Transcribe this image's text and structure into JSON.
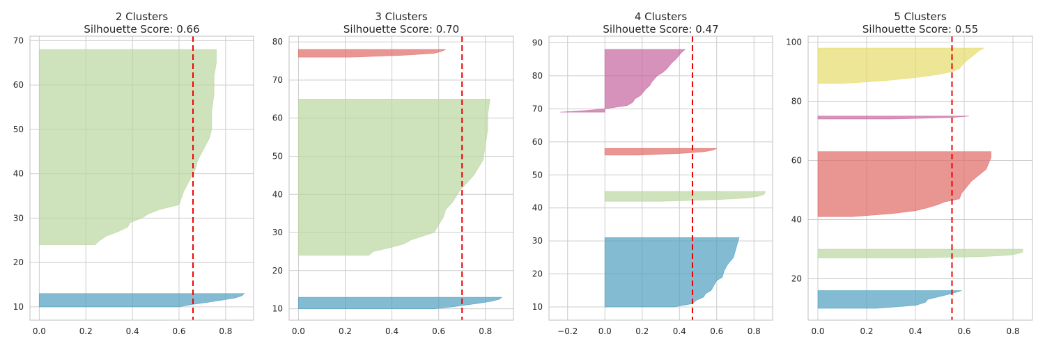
{
  "figure": {
    "background": "#ffffff"
  },
  "chart_data": [
    {
      "type": "area",
      "chart_kind": "silhouette",
      "title": "2 Clusters",
      "subtitle": "Silhouette Score: 0.66",
      "avg_score": 0.66,
      "avg_line_color": "#ee0000",
      "xlim": [
        -0.04,
        0.92
      ],
      "ylim": [
        7,
        71
      ],
      "xticks": [
        0.0,
        0.2,
        0.4,
        0.6,
        0.8
      ],
      "xtick_labels": [
        "0.0",
        "0.2",
        "0.4",
        "0.6",
        "0.8"
      ],
      "yticks": [
        10,
        20,
        30,
        40,
        50,
        60,
        70
      ],
      "ytick_labels": [
        "10",
        "20",
        "30",
        "40",
        "50",
        "60",
        "70"
      ],
      "grid": true,
      "clusters": [
        {
          "color": "#4f9ebf",
          "y_start": 10,
          "y_end": 13,
          "profile": [
            [
              10,
              0.6
            ],
            [
              10.5,
              0.65
            ],
            [
              11,
              0.72
            ],
            [
              11.5,
              0.78
            ],
            [
              12,
              0.84
            ],
            [
              12.5,
              0.87
            ],
            [
              13,
              0.88
            ]
          ]
        },
        {
          "color": "#b9d6a0",
          "y_start": 24,
          "y_end": 68,
          "profile": [
            [
              24,
              0.24
            ],
            [
              25,
              0.26
            ],
            [
              26,
              0.29
            ],
            [
              27,
              0.34
            ],
            [
              28,
              0.38
            ],
            [
              29,
              0.39
            ],
            [
              30,
              0.44
            ],
            [
              31,
              0.47
            ],
            [
              32,
              0.52
            ],
            [
              33,
              0.6
            ],
            [
              36,
              0.62
            ],
            [
              38,
              0.64
            ],
            [
              41,
              0.67
            ],
            [
              43,
              0.68
            ],
            [
              45,
              0.7
            ],
            [
              48,
              0.73
            ],
            [
              50,
              0.74
            ],
            [
              54,
              0.74
            ],
            [
              58,
              0.75
            ],
            [
              62,
              0.75
            ],
            [
              65,
              0.76
            ],
            [
              68,
              0.76
            ]
          ]
        }
      ]
    },
    {
      "type": "area",
      "chart_kind": "silhouette",
      "title": "3 Clusters",
      "subtitle": "Silhouette Score: 0.70",
      "avg_score": 0.7,
      "avg_line_color": "#ee0000",
      "xlim": [
        -0.04,
        0.92
      ],
      "ylim": [
        7,
        81.5
      ],
      "xticks": [
        0.0,
        0.2,
        0.4,
        0.6,
        0.8
      ],
      "xtick_labels": [
        "0.0",
        "0.2",
        "0.4",
        "0.6",
        "0.8"
      ],
      "yticks": [
        10,
        20,
        30,
        40,
        50,
        60,
        70,
        80
      ],
      "ytick_labels": [
        "10",
        "20",
        "30",
        "40",
        "50",
        "60",
        "70",
        "80"
      ],
      "grid": true,
      "clusters": [
        {
          "color": "#4f9ebf",
          "y_start": 10,
          "y_end": 13,
          "profile": [
            [
              10,
              0.58
            ],
            [
              10.5,
              0.66
            ],
            [
              11,
              0.72
            ],
            [
              11.5,
              0.78
            ],
            [
              12,
              0.83
            ],
            [
              12.5,
              0.86
            ],
            [
              13,
              0.87
            ]
          ]
        },
        {
          "color": "#b9d6a0",
          "y_start": 24,
          "y_end": 65,
          "profile": [
            [
              24,
              0.3
            ],
            [
              25,
              0.32
            ],
            [
              26,
              0.39
            ],
            [
              27,
              0.45
            ],
            [
              28,
              0.48
            ],
            [
              29,
              0.53
            ],
            [
              30,
              0.58
            ],
            [
              31,
              0.59
            ],
            [
              34,
              0.62
            ],
            [
              36,
              0.63
            ],
            [
              38,
              0.66
            ],
            [
              41,
              0.69
            ],
            [
              43,
              0.72
            ],
            [
              45,
              0.75
            ],
            [
              47,
              0.77
            ],
            [
              49,
              0.79
            ],
            [
              53,
              0.8
            ],
            [
              57,
              0.81
            ],
            [
              61,
              0.81
            ],
            [
              65,
              0.82
            ]
          ]
        },
        {
          "color": "#e06a65",
          "y_start": 76,
          "y_end": 78,
          "profile": [
            [
              76,
              0.22
            ],
            [
              76.5,
              0.45
            ],
            [
              77,
              0.58
            ],
            [
              77.5,
              0.61
            ],
            [
              78,
              0.63
            ]
          ]
        }
      ]
    },
    {
      "type": "area",
      "chart_kind": "silhouette",
      "title": "4 Clusters",
      "subtitle": "Silhouette Score: 0.47",
      "avg_score": 0.47,
      "avg_line_color": "#ee0000",
      "xlim": [
        -0.3,
        0.9
      ],
      "ylim": [
        6,
        92
      ],
      "xticks": [
        -0.2,
        0.0,
        0.2,
        0.4,
        0.6,
        0.8
      ],
      "xtick_labels": [
        "−0.2",
        "0.0",
        "0.2",
        "0.4",
        "0.6",
        "0.8"
      ],
      "yticks": [
        10,
        20,
        30,
        40,
        50,
        60,
        70,
        80,
        90
      ],
      "ytick_labels": [
        "10",
        "20",
        "30",
        "40",
        "50",
        "60",
        "70",
        "80",
        "90"
      ],
      "grid": true,
      "clusters": [
        {
          "color": "#4f9ebf",
          "y_start": 10,
          "y_end": 31,
          "profile": [
            [
              10,
              0.37
            ],
            [
              11,
              0.47
            ],
            [
              12,
              0.49
            ],
            [
              13,
              0.53
            ],
            [
              14,
              0.54
            ],
            [
              15,
              0.57
            ],
            [
              16,
              0.58
            ],
            [
              18,
              0.6
            ],
            [
              19,
              0.63
            ],
            [
              21,
              0.64
            ],
            [
              23,
              0.66
            ],
            [
              25,
              0.69
            ],
            [
              27,
              0.7
            ],
            [
              29,
              0.71
            ],
            [
              31,
              0.72
            ]
          ]
        },
        {
          "color": "#b9d6a0",
          "y_start": 42,
          "y_end": 45,
          "profile": [
            [
              42,
              0.3
            ],
            [
              42.5,
              0.6
            ],
            [
              43,
              0.76
            ],
            [
              43.5,
              0.82
            ],
            [
              44,
              0.85
            ],
            [
              44.5,
              0.86
            ],
            [
              45,
              0.86
            ]
          ]
        },
        {
          "color": "#e06a65",
          "y_start": 56,
          "y_end": 58,
          "profile": [
            [
              56,
              0.18
            ],
            [
              56.5,
              0.4
            ],
            [
              57,
              0.53
            ],
            [
              57.5,
              0.58
            ],
            [
              58,
              0.6
            ]
          ]
        },
        {
          "color": "#c4649c",
          "y_start": 69,
          "y_end": 88,
          "profile": [
            [
              69,
              -0.24
            ],
            [
              69.5,
              -0.1
            ],
            [
              70,
              0.0
            ],
            [
              71,
              0.12
            ],
            [
              72,
              0.15
            ],
            [
              73,
              0.16
            ],
            [
              74,
              0.19
            ],
            [
              76,
              0.22
            ],
            [
              77,
              0.24
            ],
            [
              78,
              0.25
            ],
            [
              80,
              0.28
            ],
            [
              81,
              0.31
            ],
            [
              82,
              0.33
            ],
            [
              84,
              0.36
            ],
            [
              85,
              0.38
            ],
            [
              87,
              0.41
            ],
            [
              88,
              0.43
            ]
          ]
        }
      ]
    },
    {
      "type": "area",
      "chart_kind": "silhouette",
      "title": "5 Clusters",
      "subtitle": "Silhouette Score: 0.55",
      "avg_score": 0.55,
      "avg_line_color": "#ee0000",
      "xlim": [
        -0.04,
        0.88
      ],
      "ylim": [
        6,
        102
      ],
      "xticks": [
        0.0,
        0.2,
        0.4,
        0.6,
        0.8
      ],
      "xtick_labels": [
        "0.0",
        "0.2",
        "0.4",
        "0.6",
        "0.8"
      ],
      "yticks": [
        20,
        40,
        60,
        80,
        100
      ],
      "ytick_labels": [
        "20",
        "40",
        "60",
        "80",
        "100"
      ],
      "grid": true,
      "clusters": [
        {
          "color": "#4f9ebf",
          "y_start": 10,
          "y_end": 16,
          "profile": [
            [
              10,
              0.24
            ],
            [
              11,
              0.4
            ],
            [
              12,
              0.44
            ],
            [
              13,
              0.45
            ],
            [
              14,
              0.5
            ],
            [
              15,
              0.55
            ],
            [
              16,
              0.59
            ]
          ]
        },
        {
          "color": "#b9d6a0",
          "y_start": 27,
          "y_end": 30,
          "profile": [
            [
              27,
              0.4
            ],
            [
              27.5,
              0.68
            ],
            [
              28,
              0.79
            ],
            [
              28.5,
              0.82
            ],
            [
              29,
              0.84
            ],
            [
              29.5,
              0.84
            ],
            [
              30,
              0.84
            ]
          ]
        },
        {
          "color": "#e06a65",
          "y_start": 41,
          "y_end": 63,
          "profile": [
            [
              41,
              0.14
            ],
            [
              42,
              0.3
            ],
            [
              43,
              0.4
            ],
            [
              44,
              0.45
            ],
            [
              45,
              0.49
            ],
            [
              46,
              0.52
            ],
            [
              47,
              0.58
            ],
            [
              49,
              0.59
            ],
            [
              51,
              0.61
            ],
            [
              53,
              0.63
            ],
            [
              55,
              0.66
            ],
            [
              57,
              0.69
            ],
            [
              59,
              0.7
            ],
            [
              61,
              0.71
            ],
            [
              63,
              0.71
            ]
          ]
        },
        {
          "color": "#c4649c",
          "y_start": 74,
          "y_end": 75,
          "profile": [
            [
              74,
              0.3
            ],
            [
              74.5,
              0.55
            ],
            [
              75,
              0.62
            ]
          ]
        },
        {
          "color": "#e5dc6a",
          "y_start": 86,
          "y_end": 98,
          "profile": [
            [
              86,
              0.1
            ],
            [
              87,
              0.28
            ],
            [
              88,
              0.4
            ],
            [
              89,
              0.49
            ],
            [
              90,
              0.55
            ],
            [
              91,
              0.58
            ],
            [
              93,
              0.6
            ],
            [
              95,
              0.63
            ],
            [
              97,
              0.66
            ],
            [
              98,
              0.68
            ]
          ]
        }
      ]
    }
  ]
}
